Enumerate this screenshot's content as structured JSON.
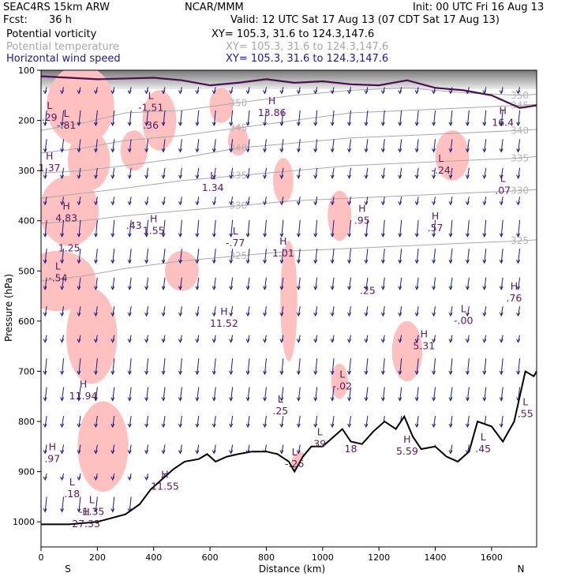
{
  "header": {
    "model": "SEAC4RS 15km ARW",
    "org": "NCAR/MMM",
    "init": "Init: 00 UTC Fri 16 Aug 13",
    "fcst_label": "Fcst:",
    "fcst_value": "36 h",
    "valid": "Valid: 12 UTC Sat 17 Aug 13 (07 CDT Sat 17 Aug 13)"
  },
  "fields": [
    {
      "name": "Potential vorticity",
      "xy": "XY= 105.3, 31.6 to 124.3,147.6",
      "color": "#000000"
    },
    {
      "name": "Potential temperature",
      "xy": "XY= 105.3, 31.6 to 124.3,147.6",
      "color": "#a8a8a8"
    },
    {
      "name": "Horizontal wind speed",
      "xy": "XY= 105.3, 31.6 to 124.3,147.6",
      "color": "#1a1a8c"
    }
  ],
  "colors": {
    "pv_fill": "#ffc0c0",
    "theta_line": "#a8a8a8",
    "pv_extrema": "#5a1a5a",
    "wind_barb": "#1a1a8c",
    "terrain": "#000000",
    "tropopause": "#4b1050"
  },
  "chart_data": {
    "type": "cross-section",
    "xlabel": "Distance (km)",
    "ylabel": "Pressure (hPa)",
    "xlim": [
      0,
      1760
    ],
    "ylim": [
      1050,
      100
    ],
    "x_ticks": [
      0,
      200,
      400,
      600,
      800,
      1000,
      1200,
      1400,
      1600
    ],
    "y_ticks": [
      100,
      200,
      300,
      400,
      500,
      600,
      700,
      800,
      900,
      1000
    ],
    "x_end_labels": {
      "left": "S",
      "right": "N"
    },
    "terrain": [
      [
        0,
        1005
      ],
      [
        100,
        1005
      ],
      [
        200,
        1000
      ],
      [
        300,
        985
      ],
      [
        350,
        965
      ],
      [
        390,
        935
      ],
      [
        430,
        915
      ],
      [
        470,
        895
      ],
      [
        510,
        880
      ],
      [
        560,
        875
      ],
      [
        590,
        865
      ],
      [
        620,
        880
      ],
      [
        660,
        870
      ],
      [
        700,
        865
      ],
      [
        750,
        860
      ],
      [
        800,
        860
      ],
      [
        840,
        865
      ],
      [
        880,
        880
      ],
      [
        900,
        900
      ],
      [
        930,
        870
      ],
      [
        960,
        850
      ],
      [
        1000,
        850
      ],
      [
        1040,
        830
      ],
      [
        1070,
        815
      ],
      [
        1100,
        840
      ],
      [
        1140,
        845
      ],
      [
        1180,
        820
      ],
      [
        1220,
        800
      ],
      [
        1260,
        815
      ],
      [
        1290,
        790
      ],
      [
        1320,
        830
      ],
      [
        1350,
        855
      ],
      [
        1400,
        850
      ],
      [
        1440,
        870
      ],
      [
        1480,
        880
      ],
      [
        1520,
        860
      ],
      [
        1550,
        800
      ],
      [
        1600,
        810
      ],
      [
        1640,
        840
      ],
      [
        1680,
        800
      ],
      [
        1720,
        700
      ],
      [
        1750,
        710
      ],
      [
        1760,
        700
      ]
    ],
    "theta_contours": [
      {
        "label": "350",
        "points": [
          [
            0,
            220
          ],
          [
            150,
            205
          ],
          [
            300,
            185
          ],
          [
            500,
            180
          ],
          [
            700,
            165
          ],
          [
            900,
            150
          ],
          [
            1100,
            140
          ],
          [
            1300,
            135
          ],
          [
            1500,
            145
          ],
          [
            1700,
            150
          ],
          [
            1760,
            148
          ]
        ]
      },
      {
        "label": "345",
        "points": [
          [
            0,
            265
          ],
          [
            150,
            255
          ],
          [
            300,
            240
          ],
          [
            500,
            230
          ],
          [
            700,
            215
          ],
          [
            900,
            200
          ],
          [
            1100,
            185
          ],
          [
            1300,
            180
          ],
          [
            1500,
            175
          ],
          [
            1700,
            170
          ],
          [
            1760,
            168
          ]
        ]
      },
      {
        "label": "340",
        "points": [
          [
            0,
            305
          ],
          [
            150,
            300
          ],
          [
            300,
            290
          ],
          [
            500,
            275
          ],
          [
            700,
            255
          ],
          [
            900,
            245
          ],
          [
            1100,
            235
          ],
          [
            1300,
            230
          ],
          [
            1500,
            225
          ],
          [
            1700,
            220
          ],
          [
            1760,
            218
          ]
        ]
      },
      {
        "label": "335",
        "points": [
          [
            0,
            355
          ],
          [
            150,
            345
          ],
          [
            300,
            335
          ],
          [
            500,
            320
          ],
          [
            700,
            310
          ],
          [
            900,
            300
          ],
          [
            1100,
            290
          ],
          [
            1300,
            285
          ],
          [
            1500,
            280
          ],
          [
            1700,
            275
          ],
          [
            1760,
            272
          ]
        ]
      },
      {
        "label": "330",
        "points": [
          [
            0,
            405
          ],
          [
            150,
            400
          ],
          [
            300,
            390
          ],
          [
            500,
            380
          ],
          [
            700,
            370
          ],
          [
            900,
            360
          ],
          [
            1100,
            355
          ],
          [
            1300,
            350
          ],
          [
            1500,
            345
          ],
          [
            1700,
            340
          ],
          [
            1760,
            338
          ]
        ]
      },
      {
        "label": "325",
        "points": [
          [
            0,
            520
          ],
          [
            150,
            510
          ],
          [
            300,
            495
          ],
          [
            500,
            480
          ],
          [
            700,
            470
          ],
          [
            900,
            460
          ],
          [
            1100,
            455
          ],
          [
            1300,
            450
          ],
          [
            1500,
            445
          ],
          [
            1700,
            440
          ],
          [
            1760,
            438
          ]
        ]
      }
    ],
    "pv_extrema": [
      {
        "type": "L",
        "value": ".29",
        "x": 30,
        "p": 190
      },
      {
        "type": "L",
        "value": "-.81",
        "x": 90,
        "p": 205
      },
      {
        "type": "H",
        "value": "1.37",
        "x": 30,
        "p": 290
      },
      {
        "type": "H",
        "value": "4.83",
        "x": 90,
        "p": 390
      },
      {
        "type": "",
        "value": "1.25",
        "x": 100,
        "p": 450
      },
      {
        "type": "L",
        "value": "-.54",
        "x": 60,
        "p": 510
      },
      {
        "type": "L",
        "value": "-1.51",
        "x": 390,
        "p": 170
      },
      {
        "type": "",
        "value": ".36",
        "x": 390,
        "p": 205
      },
      {
        "type": "H",
        "value": "13.86",
        "x": 820,
        "p": 180
      },
      {
        "type": "H",
        "value": "16.4",
        "x": 1640,
        "p": 200
      },
      {
        "type": "L",
        "value": "-.24",
        "x": 1420,
        "p": 295
      },
      {
        "type": "L",
        "value": ".07",
        "x": 1640,
        "p": 335
      },
      {
        "type": "L",
        "value": "1.34",
        "x": 610,
        "p": 330
      },
      {
        "type": "",
        "value": ".43",
        "x": 330,
        "p": 405
      },
      {
        "type": "H",
        "value": "1.55",
        "x": 400,
        "p": 415
      },
      {
        "type": "L",
        "value": "-.77",
        "x": 690,
        "p": 440
      },
      {
        "type": "H",
        "value": "1.01",
        "x": 860,
        "p": 460
      },
      {
        "type": "H",
        "value": ".95",
        "x": 1140,
        "p": 395
      },
      {
        "type": "H",
        "value": ".57",
        "x": 1400,
        "p": 410
      },
      {
        "type": "",
        "value": ".25",
        "x": 1160,
        "p": 535
      },
      {
        "type": "H",
        "value": ".76",
        "x": 1680,
        "p": 550
      },
      {
        "type": "H",
        "value": "11.52",
        "x": 650,
        "p": 600
      },
      {
        "type": "L",
        "value": "-.00",
        "x": 1500,
        "p": 595
      },
      {
        "type": "H",
        "value": "5.31",
        "x": 1360,
        "p": 645
      },
      {
        "type": "H",
        "value": "11.94",
        "x": 150,
        "p": 745
      },
      {
        "type": "L",
        "value": "-.02",
        "x": 1070,
        "p": 725
      },
      {
        "type": "L",
        "value": ".25",
        "x": 850,
        "p": 775
      },
      {
        "type": "H",
        "value": ".97",
        "x": 40,
        "p": 870
      },
      {
        "type": "L",
        "value": ".18",
        "x": 110,
        "p": 940
      },
      {
        "type": "L",
        "value": "-1.35",
        "x": 180,
        "p": 975
      },
      {
        "type": "H",
        "value": "27.33",
        "x": 160,
        "p": 1000
      },
      {
        "type": "H",
        "value": "11.55",
        "x": 440,
        "p": 925
      },
      {
        "type": "L",
        "value": "-.26",
        "x": 900,
        "p": 880
      },
      {
        "type": "L",
        "value": "39",
        "x": 990,
        "p": 840
      },
      {
        "type": "",
        "value": "18",
        "x": 1100,
        "p": 850
      },
      {
        "type": "H",
        "value": "5.59",
        "x": 1300,
        "p": 855
      },
      {
        "type": "L",
        "value": ".45",
        "x": 1570,
        "p": 850
      },
      {
        "type": "L",
        "value": ".55",
        "x": 1720,
        "p": 780
      }
    ]
  }
}
